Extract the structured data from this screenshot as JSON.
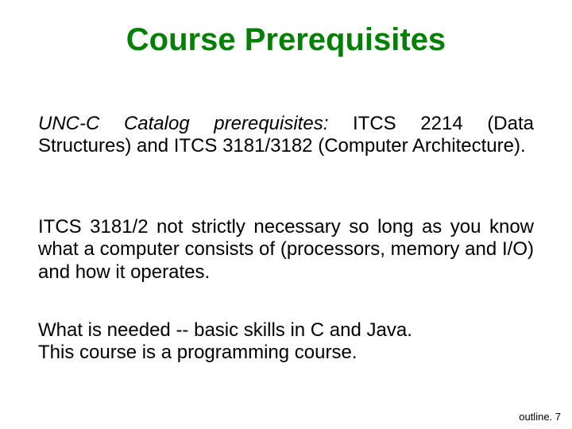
{
  "title": {
    "text": "Course Prerequisites",
    "color": "#008000",
    "fontsize": 40
  },
  "body": {
    "fontsize": 24,
    "color": "#000000",
    "para1_lead": "UNC-C Catalog prerequisites:",
    "para1_rest": " ITCS 2214 (Data Structures) and ITCS 3181/3182 (Computer Architecture).",
    "para2": "ITCS 3181/2 not strictly necessary so long as you know what a computer consists of (processors, memory and I/O) and how it operates.",
    "para3_line1": "What is needed -- basic skills in C and Java.",
    "para3_line2": "This course is a programming course."
  },
  "footer": {
    "text": "outline. 7",
    "fontsize": 13,
    "color": "#000000"
  }
}
